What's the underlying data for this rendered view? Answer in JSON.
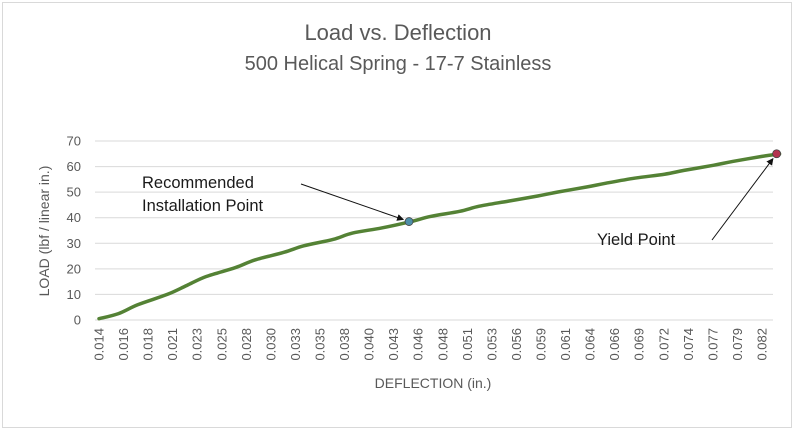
{
  "chart_data": {
    "type": "line",
    "title": "Load vs. Deflection",
    "subtitle": "500 Helical Spring - 17-7 Stainless",
    "xlabel": "DEFLECTION (in.)",
    "ylabel": "LOAD (lbf / linear in.)",
    "ylim": [
      0,
      70
    ],
    "yticks": [
      "0",
      "10",
      "20",
      "30",
      "40",
      "50",
      "60",
      "70"
    ],
    "categories": [
      "0.014",
      "0.016",
      "0.018",
      "0.021",
      "0.023",
      "0.025",
      "0.028",
      "0.030",
      "0.033",
      "0.035",
      "0.038",
      "0.040",
      "0.043",
      "0.046",
      "0.048",
      "0.051",
      "0.053",
      "0.056",
      "0.059",
      "0.061",
      "0.064",
      "0.066",
      "0.069",
      "0.072",
      "0.074",
      "0.077",
      "0.079",
      "0.082"
    ],
    "grid": true,
    "series": [
      {
        "color": "#548235",
        "x": [
          0.014,
          0.016,
          0.018,
          0.021,
          0.023,
          0.025,
          0.028,
          0.03,
          0.033,
          0.035,
          0.038,
          0.04,
          0.043,
          0.046,
          0.048,
          0.051,
          0.053,
          0.056,
          0.059,
          0.061,
          0.064,
          0.066,
          0.069,
          0.072,
          0.074,
          0.077,
          0.079,
          0.082,
          0.0838
        ],
        "y": [
          0.5,
          2.5,
          6.0,
          10.0,
          13.5,
          17.0,
          20.5,
          23.5,
          26.5,
          29.0,
          31.5,
          34.0,
          36.0,
          38.5,
          40.5,
          42.5,
          44.5,
          46.5,
          48.5,
          50.0,
          52.0,
          53.5,
          55.5,
          57.0,
          58.5,
          60.5,
          62.0,
          64.0,
          65.0
        ]
      }
    ],
    "annotations": [
      {
        "text_lines": [
          "Recommended",
          "Installation Point"
        ],
        "x": 0.0458,
        "y": 38.5,
        "marker_color": "#4e8fa8"
      },
      {
        "text_lines": [
          "Yield Point"
        ],
        "x": 0.0835,
        "y": 65.0,
        "marker_color": "#b4334f"
      }
    ]
  }
}
